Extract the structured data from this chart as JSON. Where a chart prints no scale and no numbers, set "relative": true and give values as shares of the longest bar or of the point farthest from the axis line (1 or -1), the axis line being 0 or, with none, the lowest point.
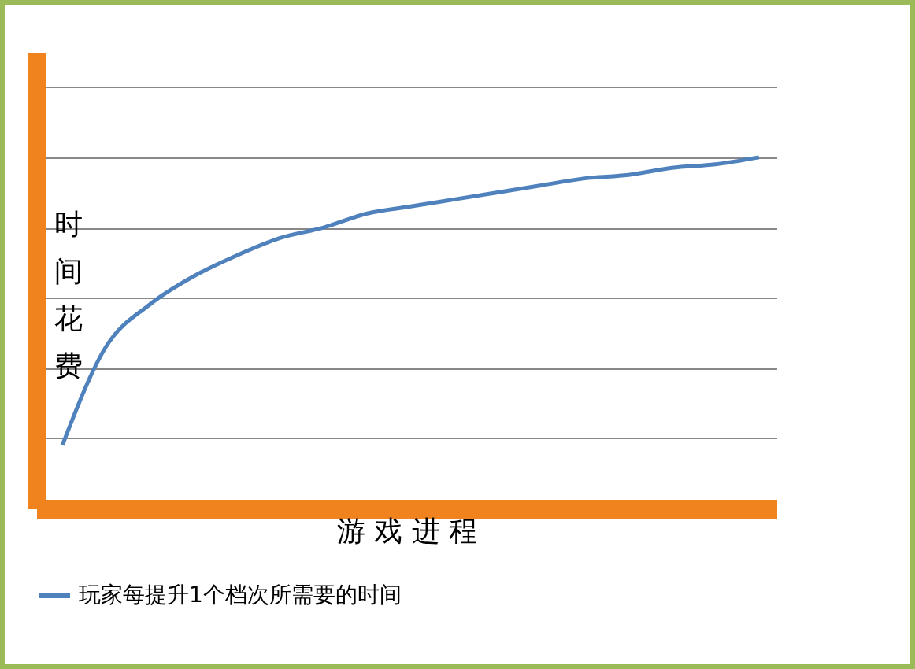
{
  "chart_data": {
    "type": "line",
    "relative": true,
    "xlabel": "游 戏 进 程",
    "ylabel": "时间花费",
    "categories": [
      null,
      null,
      null,
      null,
      null,
      null,
      null,
      null,
      null,
      null,
      null,
      null,
      null,
      null,
      null,
      null,
      null
    ],
    "series": [
      {
        "name": "玩家每提升1个档次所需要的时间",
        "color": "#4f81bd",
        "values": [
          0.18,
          0.46,
          0.58,
          0.66,
          0.72,
          0.77,
          0.8,
          0.84,
          0.86,
          0.88,
          0.9,
          0.92,
          0.94,
          0.95,
          0.97,
          0.98,
          1
        ]
      }
    ],
    "grid": "y",
    "legend": "bottom",
    "marker": "none",
    "line_style": "solid"
  }
}
